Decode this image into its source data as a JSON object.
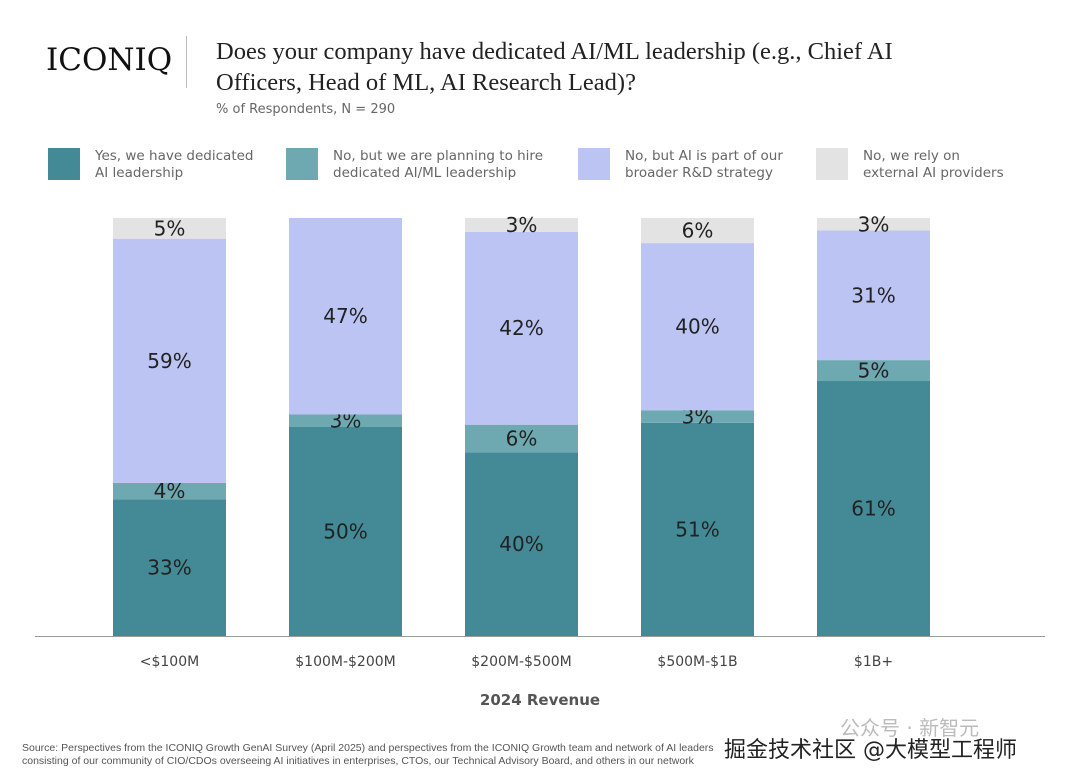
{
  "logo": "ICONIQ",
  "chart_data": {
    "type": "bar",
    "stacked": true,
    "title": "Does your company have dedicated AI/ML leadership (e.g., Chief AI Officers, Head of ML, AI Research Lead)?",
    "subtitle": "% of Respondents, N = 290",
    "xlabel": "2024 Revenue",
    "ylabel": "",
    "ylim": [
      0,
      100
    ],
    "grid": false,
    "legend_position": "top",
    "categories": [
      "<$100M",
      "$100M-$200M",
      "$200M-$500M",
      "$500M-$1B",
      "$1B+"
    ],
    "series": [
      {
        "name": "Yes, we have dedicated\nAI leadership",
        "color": "#438a96",
        "values": [
          33,
          50,
          40,
          51,
          61
        ]
      },
      {
        "name": "No, but we are planning to hire\ndedicated AI/ML leadership",
        "color": "#6ea8b1",
        "values": [
          4,
          3,
          6,
          3,
          5
        ]
      },
      {
        "name": "No, but AI is part of our\nbroader R&D strategy",
        "color": "#bcc4f3",
        "values": [
          59,
          47,
          42,
          40,
          31
        ]
      },
      {
        "name": "No, we rely on\nexternal AI providers",
        "color": "#e3e3e3",
        "values": [
          5,
          0,
          3,
          6,
          3
        ]
      }
    ]
  },
  "source": "Source: Perspectives from the ICONIQ Growth GenAI Survey (April 2025) and perspectives from the ICONIQ Growth team and network of AI leaders consisting of our community of CIO/CDOs overseeing AI initiatives in enterprises, CTOs, our Technical Advisory Board, and others in our network",
  "watermark": "掘金技术社区 @大模型工程师",
  "watermark2": "公众号 · 新智元"
}
